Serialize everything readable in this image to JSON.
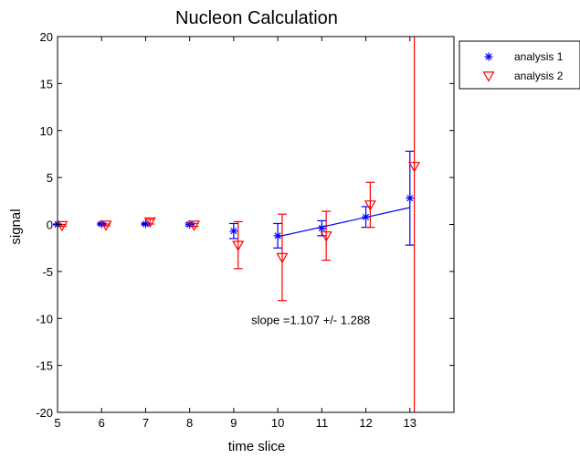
{
  "chart_data": {
    "type": "scatter",
    "title": "Nucleon Calculation",
    "xlabel": "time slice",
    "ylabel": "signal",
    "xlim": [
      5,
      14
    ],
    "ylim": [
      -20,
      20
    ],
    "xticks": [
      5,
      6,
      7,
      8,
      9,
      10,
      11,
      12,
      13
    ],
    "yticks": [
      -20,
      -15,
      -10,
      -5,
      0,
      5,
      10,
      15,
      20
    ],
    "grid": false,
    "legend_position": "outside-top-right",
    "series": [
      {
        "name": "analysis 1",
        "marker": "asterisk",
        "color": "#0000ff",
        "points": [
          {
            "x": 5,
            "y": 0.0,
            "err": 0.05
          },
          {
            "x": 6,
            "y": 0.05,
            "err": 0.1
          },
          {
            "x": 7,
            "y": 0.05,
            "err": 0.1
          },
          {
            "x": 8,
            "y": 0.0,
            "err": 0.15
          },
          {
            "x": 9,
            "y": -0.7,
            "err": 0.8
          },
          {
            "x": 10,
            "y": -1.2,
            "err": 1.3
          },
          {
            "x": 11,
            "y": -0.4,
            "err": 0.8
          },
          {
            "x": 12,
            "y": 0.8,
            "err": 1.1
          },
          {
            "x": 13,
            "y": 2.8,
            "err": 5.0
          }
        ]
      },
      {
        "name": "analysis 2",
        "marker": "triangle-down",
        "color": "#ff0000",
        "points": [
          {
            "x": 5.1,
            "y": -0.1,
            "err": 0.1
          },
          {
            "x": 6.1,
            "y": -0.05,
            "err": 0.1
          },
          {
            "x": 7.1,
            "y": 0.3,
            "err": 0.25
          },
          {
            "x": 8.1,
            "y": -0.05,
            "err": 0.15
          },
          {
            "x": 9.1,
            "y": -2.2,
            "err": 2.5
          },
          {
            "x": 10.1,
            "y": -3.5,
            "err": 4.6
          },
          {
            "x": 11.1,
            "y": -1.2,
            "err": 2.6
          },
          {
            "x": 12.1,
            "y": 2.1,
            "err": 2.4
          },
          {
            "x": 13.1,
            "y": 6.2,
            "err": 30
          }
        ]
      }
    ],
    "fit_line": {
      "color": "#0000ff",
      "x": [
        10,
        13
      ],
      "y": [
        -1.3,
        1.8
      ]
    },
    "annotation": "slope =1.107 +/- 1.288"
  }
}
